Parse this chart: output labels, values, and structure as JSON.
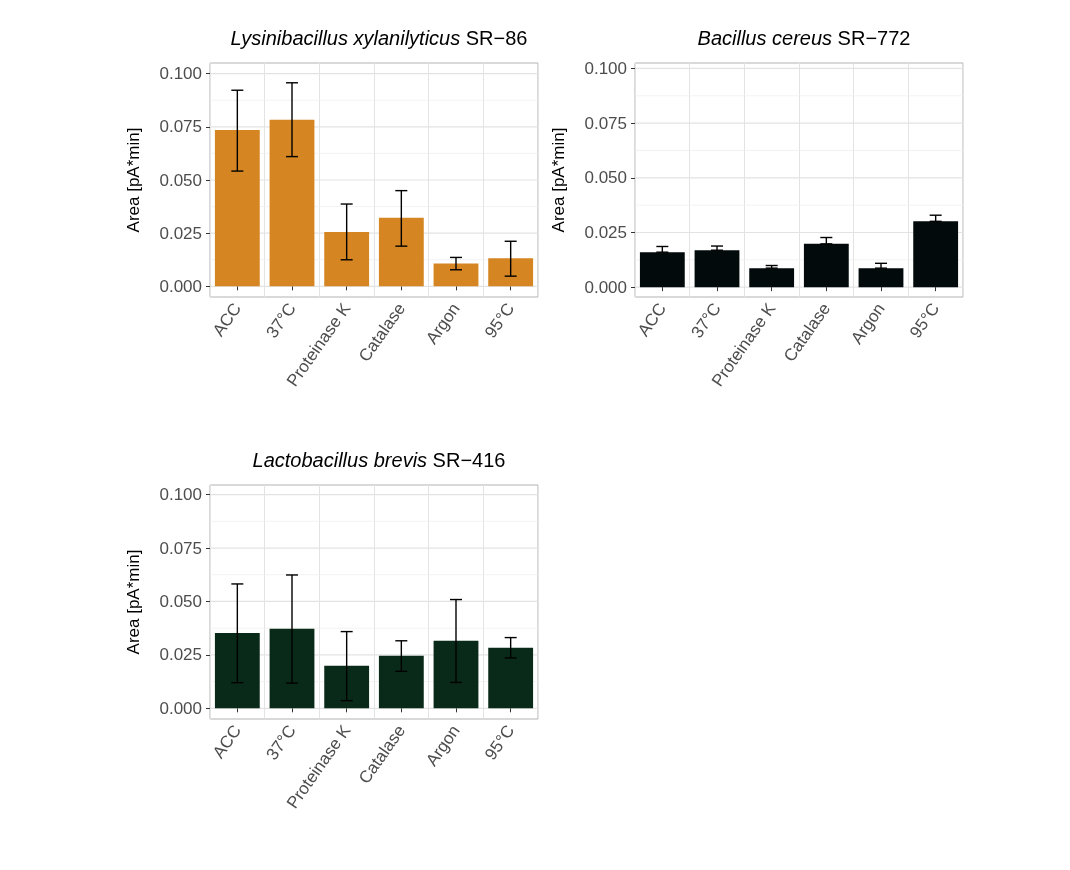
{
  "chart_data": [
    {
      "type": "bar",
      "title": "Lysinibacillus xylanilyticus SR−86",
      "ylabel": "Area [pA*min]",
      "categories": [
        "ACC",
        "37°C",
        "Proteinase K",
        "Catalase",
        "Argon",
        "95°C"
      ],
      "color": "#d58521",
      "values": [
        0.0735,
        0.0783,
        0.0255,
        0.0322,
        0.0108,
        0.0132
      ],
      "errors": [
        [
          0.0542,
          0.0922
        ],
        [
          0.061,
          0.0957
        ],
        [
          0.0125,
          0.0387
        ],
        [
          0.0189,
          0.045
        ],
        [
          0.0078,
          0.0136
        ],
        [
          0.0048,
          0.0212
        ]
      ],
      "ylim": [
        -0.005,
        0.105
      ],
      "yticks": [
        {
          "value": 0,
          "label": "0.000"
        },
        {
          "value": 0.025,
          "label": "0.025"
        },
        {
          "value": 0.05,
          "label": "0.050"
        },
        {
          "value": 0.075,
          "label": "0.075"
        },
        {
          "value": 0.1,
          "label": "0.100"
        }
      ],
      "grid": true
    },
    {
      "type": "bar",
      "title": "Bacillus cereus SR−772",
      "ylabel": "Area [pA*min]",
      "categories": [
        "ACC",
        "37°C",
        "Proteinase K",
        "Catalase",
        "Argon",
        "95°C"
      ],
      "color": "#020a0c",
      "values": [
        0.016,
        0.0169,
        0.0087,
        0.0198,
        0.0087,
        0.0301
      ],
      "errors": [
        [
          0.016,
          0.0186
        ],
        [
          0.0169,
          0.0188
        ],
        [
          0.0087,
          0.0099
        ],
        [
          0.0198,
          0.0227
        ],
        [
          0.0087,
          0.0109
        ],
        [
          0.0301,
          0.0329
        ]
      ],
      "ylim": [
        -0.0045,
        0.1025
      ],
      "yticks": [
        {
          "value": 0,
          "label": "0.000"
        },
        {
          "value": 0.025,
          "label": "0.025"
        },
        {
          "value": 0.05,
          "label": "0.050"
        },
        {
          "value": 0.075,
          "label": "0.075"
        },
        {
          "value": 0.1,
          "label": "0.100"
        }
      ],
      "grid": true
    },
    {
      "type": "bar",
      "title": "Lactobacillus brevis SR−416",
      "ylabel": "Area [pA*min]",
      "categories": [
        "ACC",
        "37°C",
        "Proteinase K",
        "Catalase",
        "Argon",
        "95°C"
      ],
      "color": "#0a2a19",
      "values": [
        0.0353,
        0.0372,
        0.0199,
        0.0246,
        0.0316,
        0.0283
      ],
      "errors": [
        [
          0.012,
          0.0582
        ],
        [
          0.0118,
          0.0624
        ],
        [
          0.0036,
          0.0359
        ],
        [
          0.0173,
          0.0316
        ],
        [
          0.0121,
          0.0509
        ],
        [
          0.0236,
          0.0331
        ]
      ],
      "ylim": [
        -0.005,
        0.1045
      ],
      "yticks": [
        {
          "value": 0,
          "label": "0.000"
        },
        {
          "value": 0.025,
          "label": "0.025"
        },
        {
          "value": 0.05,
          "label": "0.050"
        },
        {
          "value": 0.075,
          "label": "0.075"
        },
        {
          "value": 0.1,
          "label": "0.100"
        }
      ],
      "grid": true
    }
  ]
}
